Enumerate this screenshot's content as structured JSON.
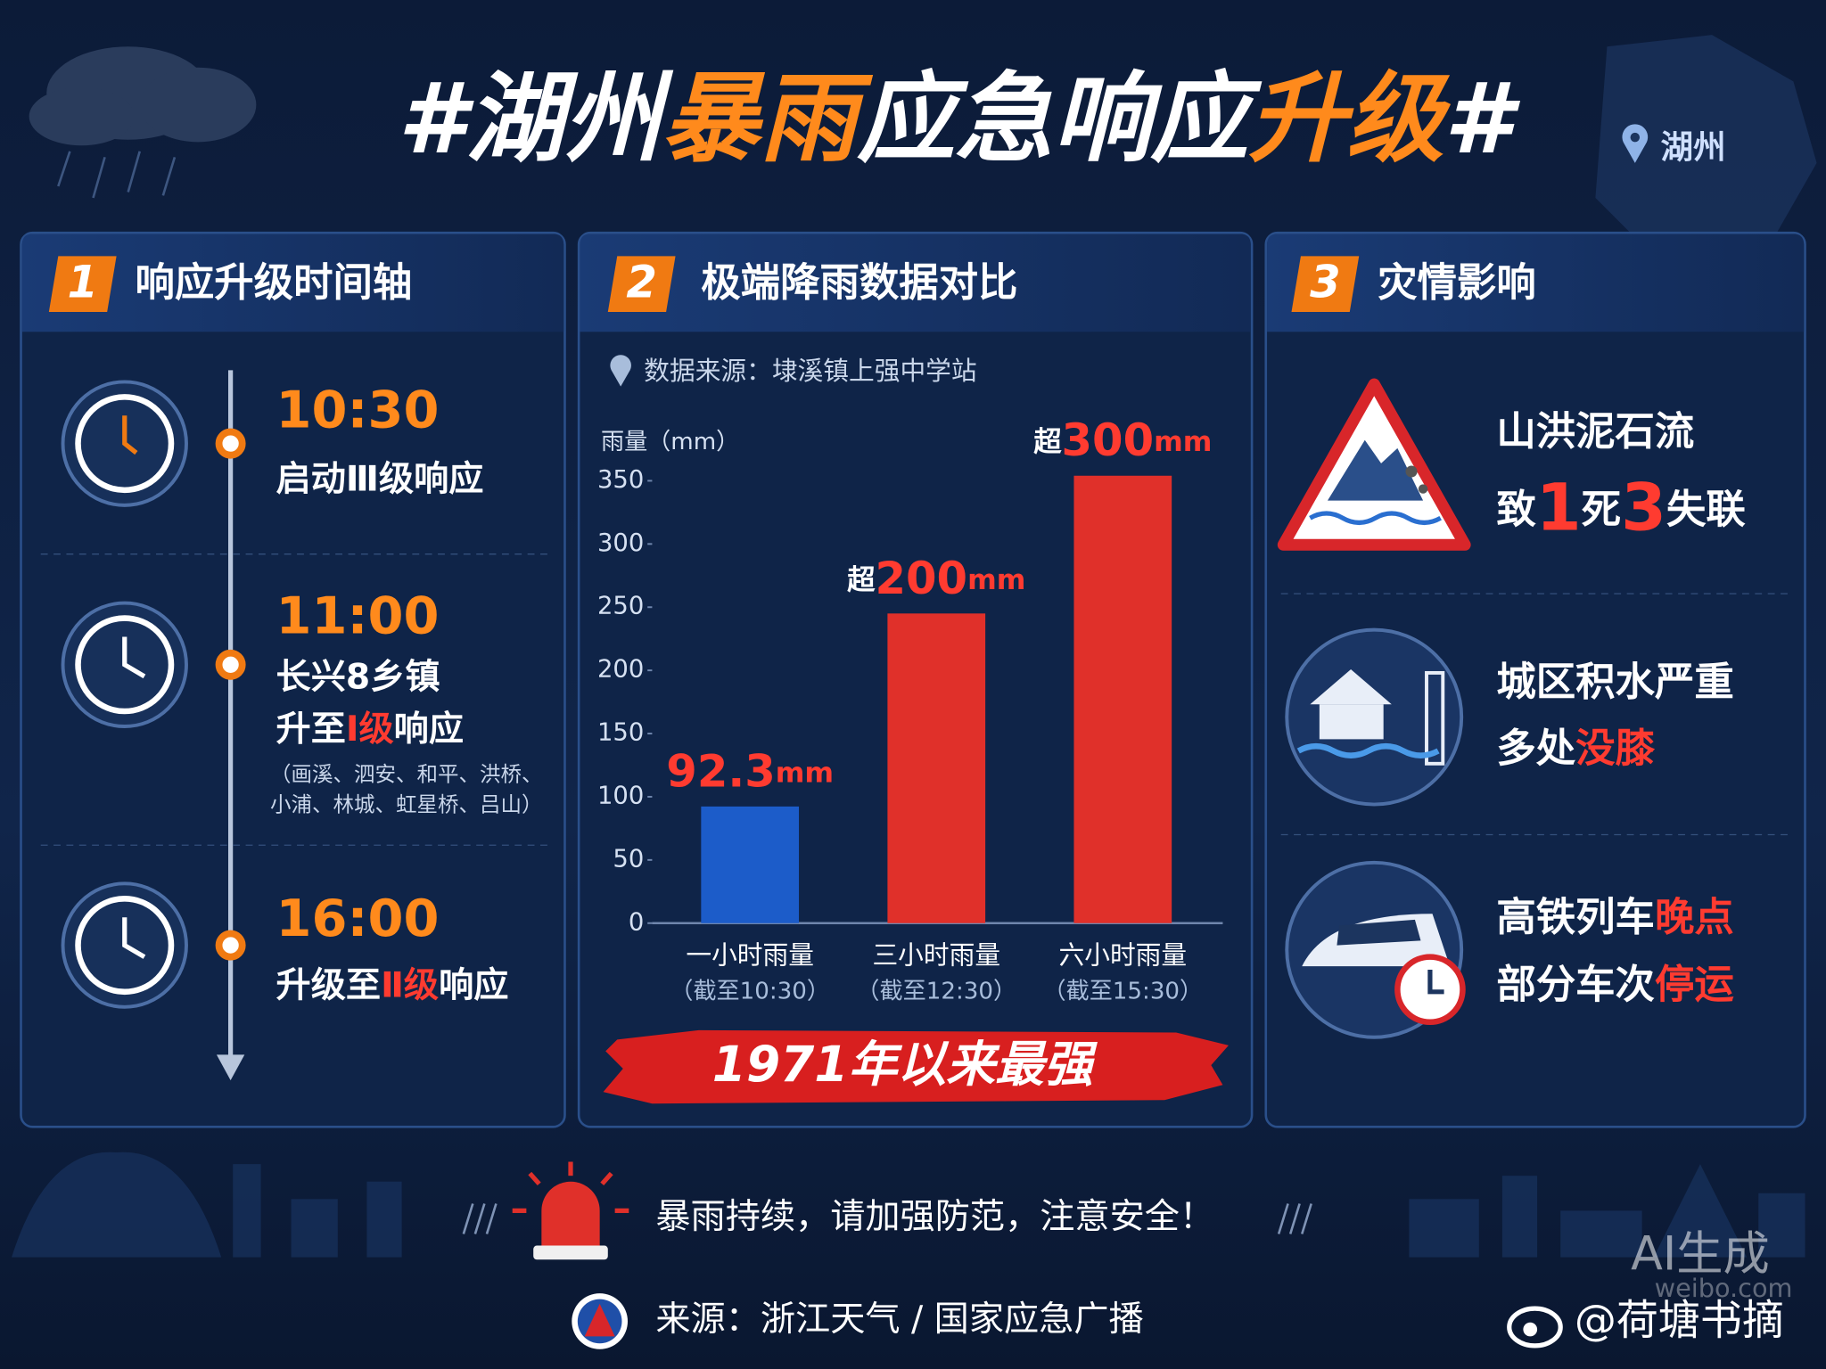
{
  "title": [
    {
      "text": "#湖州"
    },
    {
      "text": "暴雨",
      "highlight": true
    },
    {
      "text": "应急响应"
    },
    {
      "text": "升级",
      "highlight": true
    },
    {
      "text": "#"
    }
  ],
  "location": "湖州",
  "panel1": {
    "number": "1",
    "heading": "响应升级时间轴",
    "events": [
      {
        "time": "10:30",
        "lines": [
          [
            {
              "text": "启动Ⅲ级响应"
            }
          ]
        ],
        "notes": []
      },
      {
        "time": "11:00",
        "lines": [
          [
            {
              "text": "长兴8乡镇"
            }
          ],
          [
            {
              "text": "升至"
            },
            {
              "text": "Ⅰ级",
              "highlight": true
            },
            {
              "text": "响应"
            }
          ]
        ],
        "notes": [
          "（画溪、泗安、和平、洪桥、",
          "小浦、林城、虹星桥、吕山）"
        ]
      },
      {
        "time": "16:00",
        "lines": [
          [
            {
              "text": "升级至"
            },
            {
              "text": "Ⅱ级",
              "highlight": true
            },
            {
              "text": "响应"
            }
          ]
        ],
        "notes": []
      }
    ]
  },
  "panel2": {
    "number": "2",
    "heading": "极端降雨数据对比",
    "source": "数据来源：埭溪镇上强中学站",
    "chart": {
      "type": "bar",
      "y_label": "雨量（mm）",
      "categories": [
        "一小时雨量",
        "三小时雨量",
        "六小时雨量"
      ],
      "category_notes": [
        "（截至10:30）",
        "（截至12:30）",
        "（截至15:30）"
      ],
      "values": [
        92.3,
        245,
        354
      ],
      "value_labels": [
        "92.3mm",
        "超200mm",
        "超300mm"
      ],
      "colors": [
        "#1c5cc9",
        "#e0302a",
        "#e0302a"
      ],
      "ylim": [
        0,
        350
      ],
      "yticks": [
        0,
        50,
        100,
        150,
        200,
        250,
        300,
        350
      ],
      "grid": false
    },
    "banner": "1971年以来最强"
  },
  "panel3": {
    "number": "3",
    "heading": "灾情影响",
    "items": [
      {
        "lines": [
          [
            {
              "text": "山洪泥石流"
            }
          ],
          [
            {
              "text": "致"
            },
            {
              "text": "1",
              "highlight": true
            },
            {
              "text": "死"
            },
            {
              "text": "3",
              "highlight": true
            },
            {
              "text": "失联"
            }
          ]
        ]
      },
      {
        "lines": [
          [
            {
              "text": "城区积水严重"
            }
          ],
          [
            {
              "text": "多处"
            },
            {
              "text": "没膝",
              "highlight": true
            }
          ]
        ]
      },
      {
        "lines": [
          [
            {
              "text": "高铁列车"
            },
            {
              "text": "晚点",
              "highlight": true
            }
          ],
          [
            {
              "text": "部分车次"
            },
            {
              "text": "停运",
              "highlight": true
            }
          ]
        ]
      }
    ]
  },
  "footer": {
    "alert": "暴雨持续，请加强防范，注意安全！",
    "source": "来源：浙江天气 / 国家应急广播",
    "ai_mark": "AI生成",
    "site": "weibo.com",
    "account": "@荷塘书摘"
  }
}
